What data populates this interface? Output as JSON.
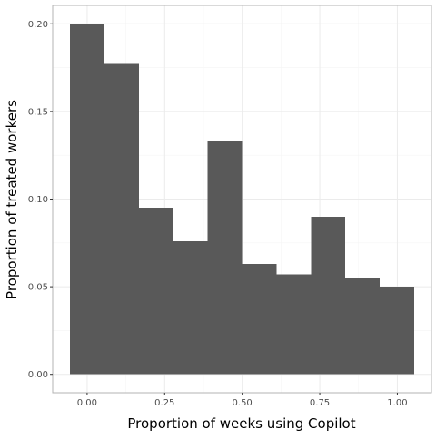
{
  "chart_data": {
    "type": "bar",
    "subtype": "histogram",
    "xlabel": "Proportion of weeks using Copilot",
    "ylabel": "Proportion of treated workers",
    "bin_width": 0.111,
    "bins": [
      {
        "x_start": -0.0555,
        "x_end": 0.0555,
        "value": 0.2
      },
      {
        "x_start": 0.0555,
        "x_end": 0.1665,
        "value": 0.177
      },
      {
        "x_start": 0.1665,
        "x_end": 0.2775,
        "value": 0.095
      },
      {
        "x_start": 0.2775,
        "x_end": 0.3885,
        "value": 0.076
      },
      {
        "x_start": 0.3885,
        "x_end": 0.4995,
        "value": 0.133
      },
      {
        "x_start": 0.4995,
        "x_end": 0.6105,
        "value": 0.063
      },
      {
        "x_start": 0.6105,
        "x_end": 0.7215,
        "value": 0.057
      },
      {
        "x_start": 0.7215,
        "x_end": 0.8325,
        "value": 0.09
      },
      {
        "x_start": 0.8325,
        "x_end": 0.9435,
        "value": 0.055
      },
      {
        "x_start": 0.9435,
        "x_end": 1.0545,
        "value": 0.05
      }
    ],
    "xlim": [
      -0.111,
      1.11
    ],
    "ylim": [
      -0.0105,
      0.2105
    ],
    "x_ticks": [
      {
        "value": 0.0,
        "label": "0.00"
      },
      {
        "value": 0.25,
        "label": "0.25"
      },
      {
        "value": 0.5,
        "label": "0.50"
      },
      {
        "value": 0.75,
        "label": "0.75"
      },
      {
        "value": 1.0,
        "label": "1.00"
      }
    ],
    "y_ticks": [
      {
        "value": 0.0,
        "label": "0.00"
      },
      {
        "value": 0.05,
        "label": "0.05"
      },
      {
        "value": 0.1,
        "label": "0.10"
      },
      {
        "value": 0.15,
        "label": "0.15"
      },
      {
        "value": 0.2,
        "label": "0.20"
      }
    ],
    "grid": true,
    "legend": "none",
    "colors": {
      "bar_fill": "#595959",
      "panel_border": "#b3b3b3",
      "grid_major": "#ebebeb",
      "grid_minor": "#f5f5f5",
      "tick_text": "#4d4d4d",
      "axis_title": "#000000"
    }
  }
}
